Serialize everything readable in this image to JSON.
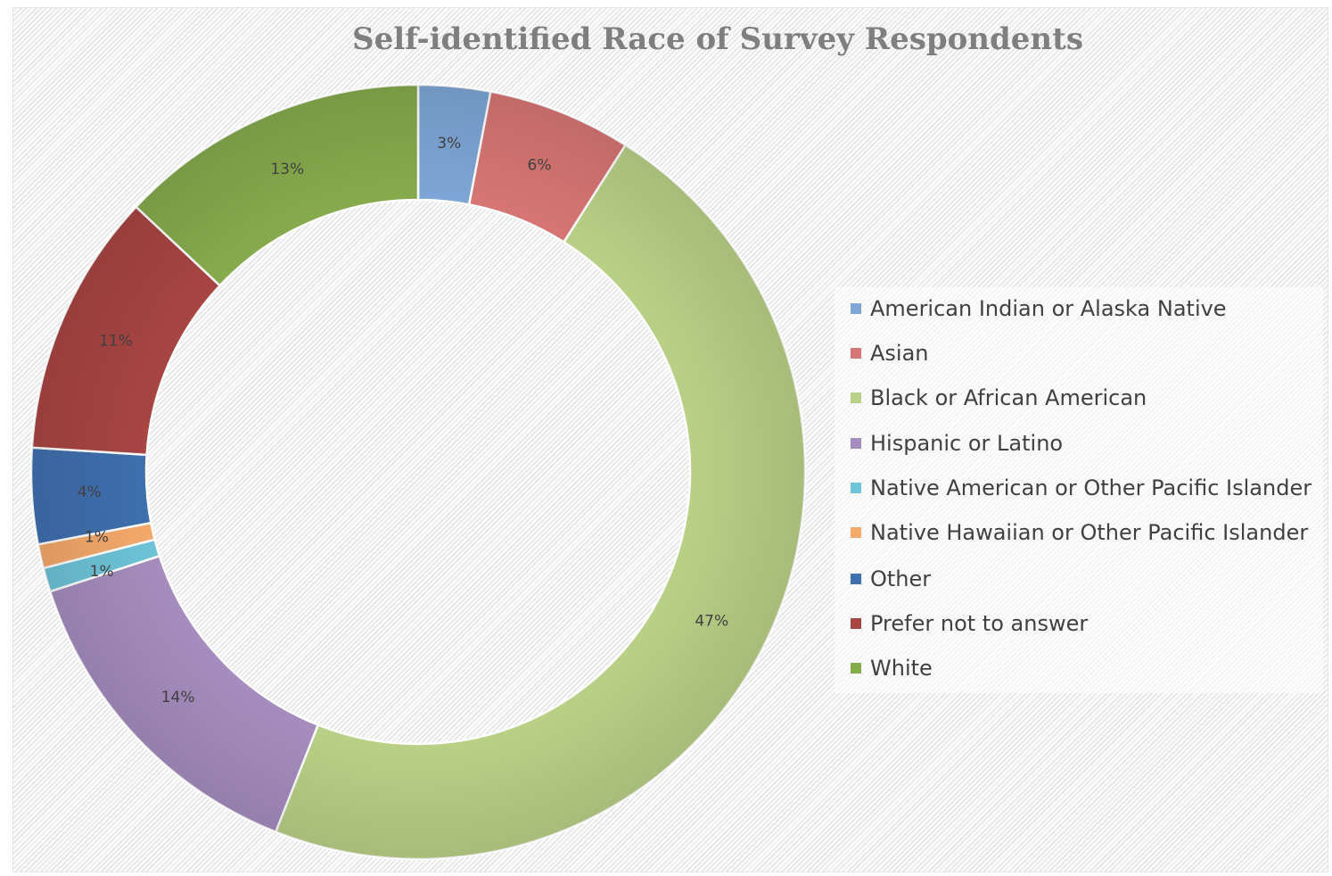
{
  "chart_data": {
    "type": "pie",
    "title": "Self-identified Race of Survey Respondents",
    "donut": true,
    "legend_position": "right",
    "categories": [
      "American Indian or Alaska Native",
      "Asian",
      "Black or African American",
      "Hispanic or Latino",
      "Native American or Other Pacific Islander",
      "Native Hawaiian or Other Pacific Islander",
      "Other",
      "Prefer not to answer",
      "White"
    ],
    "values": [
      3,
      6,
      47,
      14,
      1,
      1,
      4,
      11,
      13
    ],
    "labels": [
      "3%",
      "6%",
      "47%",
      "14%",
      "1%",
      "1%",
      "4%",
      "11%",
      "13%"
    ],
    "colors": [
      "#7ea6d6",
      "#d77674",
      "#b9d186",
      "#a68dbf",
      "#6ec4d8",
      "#f5a96b",
      "#3f6fae",
      "#a84542",
      "#86ab4c"
    ]
  }
}
